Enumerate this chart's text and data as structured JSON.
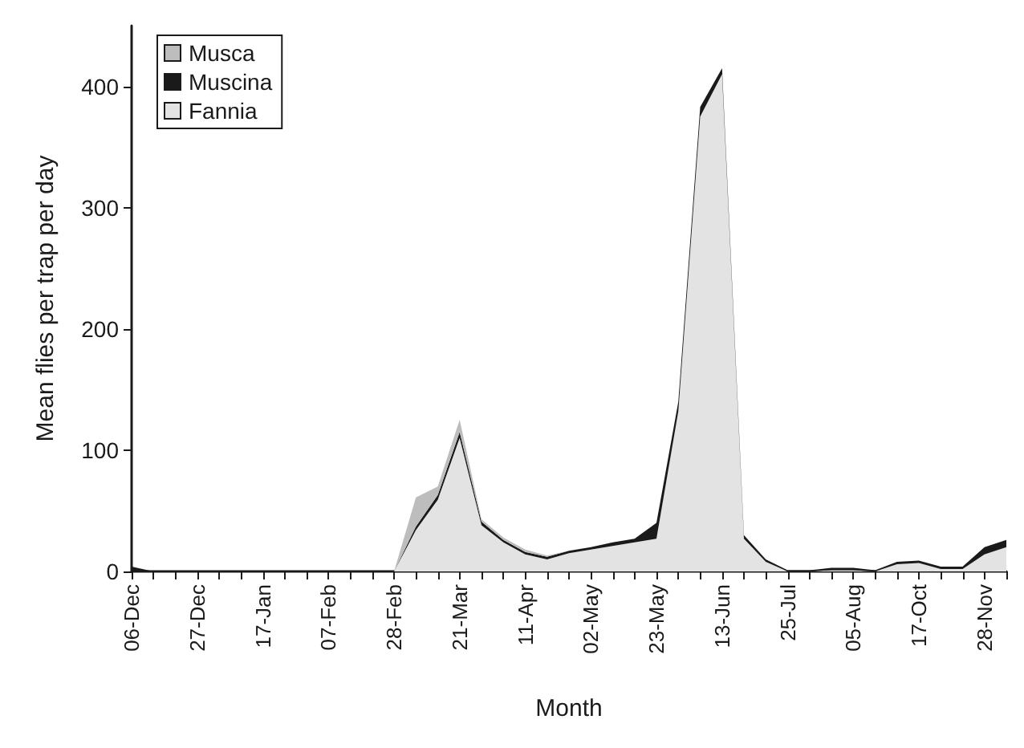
{
  "chart_data": {
    "type": "area",
    "stacked": true,
    "xlabel": "Month",
    "ylabel": "Mean flies per trap per day",
    "categories": [
      "06-Dec",
      null,
      null,
      "27-Dec",
      null,
      null,
      "17-Jan",
      null,
      null,
      "07-Feb",
      null,
      null,
      "28-Feb",
      null,
      null,
      "21-Mar",
      null,
      null,
      "11-Apr",
      null,
      null,
      "02-May",
      null,
      null,
      "23-May",
      null,
      null,
      "13-Jun",
      null,
      null,
      "25-Jul",
      null,
      null,
      "05-Aug",
      null,
      null,
      "17-Oct",
      null,
      null,
      "28-Nov",
      null
    ],
    "series": [
      {
        "name": "Fannia",
        "color": "#e3e3e3",
        "values": [
          0,
          0,
          0,
          0,
          0,
          0,
          0,
          0,
          0,
          0,
          0,
          0,
          0,
          34,
          59,
          110,
          38,
          24,
          14,
          10,
          15,
          18,
          21,
          24,
          27,
          132,
          375,
          410,
          27,
          8,
          0,
          0,
          1,
          1,
          0,
          6,
          7,
          2,
          2,
          14,
          20
        ]
      },
      {
        "name": "Muscina",
        "color": "#1a1a1a",
        "values": [
          4,
          0,
          0,
          0,
          0,
          0,
          0,
          0,
          0,
          0,
          0,
          0,
          0,
          3,
          4,
          5,
          3,
          2,
          2,
          2,
          2,
          2,
          3,
          3,
          13,
          8,
          8,
          5,
          3,
          2,
          1,
          1,
          2,
          2,
          1,
          2,
          2,
          2,
          2,
          6,
          6
        ]
      },
      {
        "name": "Musca",
        "color": "#bdbdbd",
        "values": [
          null,
          null,
          null,
          null,
          null,
          null,
          null,
          null,
          null,
          null,
          null,
          null,
          0,
          24,
          7,
          10,
          2,
          2,
          2,
          1,
          0,
          null,
          null,
          null,
          null,
          null,
          null,
          null,
          null,
          null,
          null,
          null,
          null,
          null,
          null,
          null,
          null,
          null,
          null,
          null,
          null
        ]
      }
    ],
    "ylim": [
      0,
      450
    ],
    "yticks": [
      0,
      100,
      200,
      300,
      400
    ],
    "legend": "top left"
  }
}
